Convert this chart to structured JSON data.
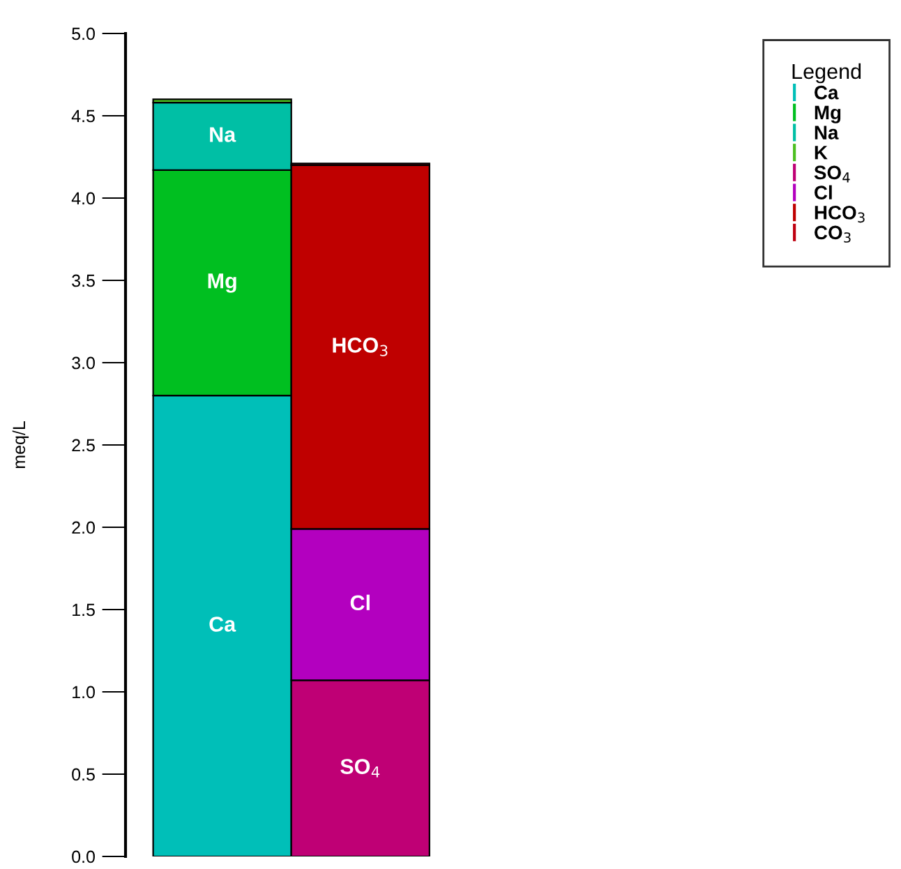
{
  "chart_data": {
    "type": "bar",
    "stacked": true,
    "ylabel": "meq/L",
    "legend_title": "Legend",
    "legend": "top right",
    "categories": [
      null,
      null
    ],
    "series": [
      {
        "name": "Ca",
        "color": "#00bfb8",
        "values": [
          2.8,
          null
        ]
      },
      {
        "name": "Mg",
        "color": "#00bf20",
        "values": [
          1.37,
          null
        ]
      },
      {
        "name": "Na",
        "color": "#00bfa5",
        "values": [
          0.41,
          null
        ]
      },
      {
        "name": "K",
        "color": "#4cbf20",
        "values": [
          0.02,
          null
        ]
      },
      {
        "name": "SO$_{4}$",
        "color": "#bf0075",
        "values": [
          null,
          1.07
        ]
      },
      {
        "name": "Cl",
        "color": "#b300bf",
        "values": [
          null,
          0.92
        ]
      },
      {
        "name": "HCO$_{3}$",
        "color": "#bf0000",
        "values": [
          null,
          2.21
        ]
      },
      {
        "name": "CO$_{3}$",
        "color": "#bf0010",
        "values": [
          null,
          0.01
        ]
      }
    ],
    "ylim": [
      0,
      5
    ],
    "yticks": [
      {
        "value": 0,
        "label": "0.0"
      },
      {
        "value": 0.5,
        "label": "0.5"
      },
      {
        "value": 1,
        "label": "1.0"
      },
      {
        "value": 1.5,
        "label": "1.5"
      },
      {
        "value": 2,
        "label": "2.0"
      },
      {
        "value": 2.5,
        "label": "2.5"
      },
      {
        "value": 3,
        "label": "3.0"
      },
      {
        "value": 3.5,
        "label": "3.5"
      },
      {
        "value": 4,
        "label": "4.0"
      },
      {
        "value": 4.5,
        "label": "4.5"
      },
      {
        "value": 5,
        "label": "5.0"
      }
    ],
    "grid": false
  }
}
